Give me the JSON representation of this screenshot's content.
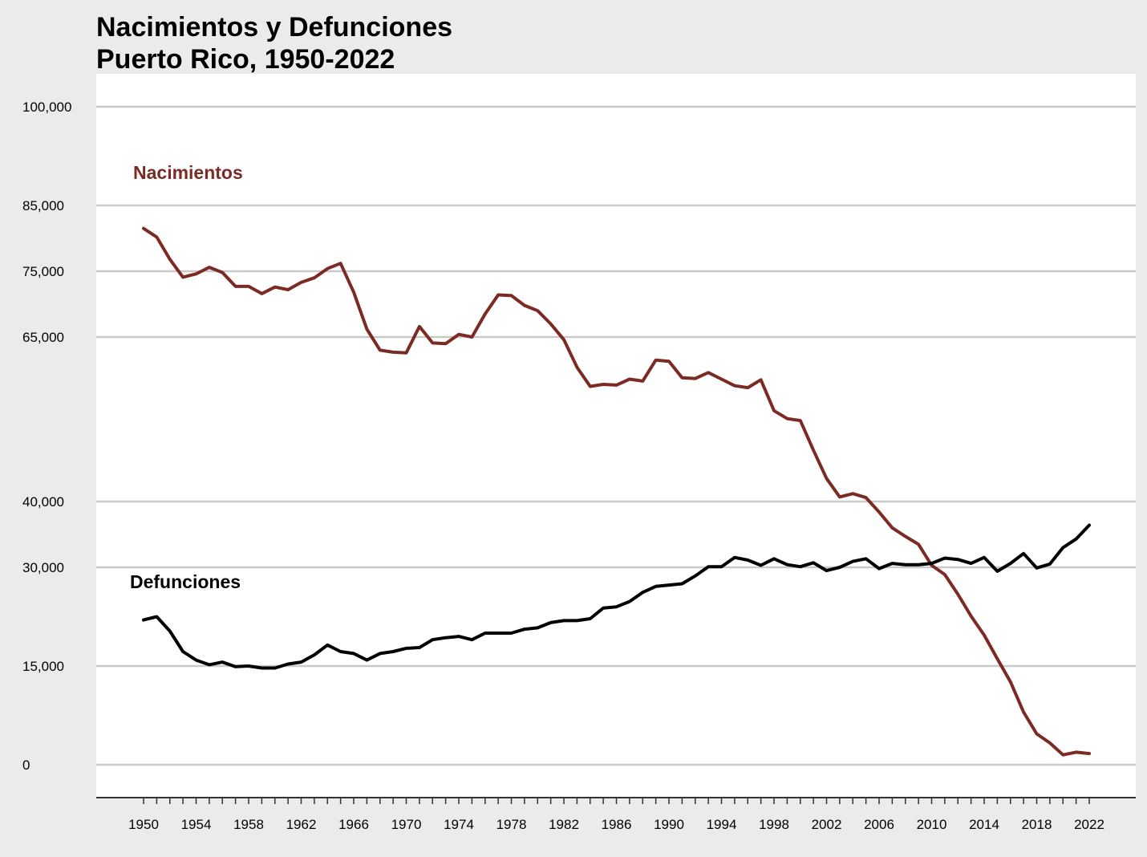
{
  "chart_data": {
    "type": "line",
    "title_line1": "Nacimientos y Defunciones",
    "title_line2": "Puerto Rico, 1950-2022",
    "xlabel": "",
    "ylabel": "",
    "x": [
      1950,
      1951,
      1952,
      1953,
      1954,
      1955,
      1956,
      1957,
      1958,
      1959,
      1960,
      1961,
      1962,
      1963,
      1964,
      1965,
      1966,
      1967,
      1968,
      1969,
      1970,
      1971,
      1972,
      1973,
      1974,
      1975,
      1976,
      1977,
      1978,
      1979,
      1980,
      1981,
      1982,
      1983,
      1984,
      1985,
      1986,
      1987,
      1988,
      1989,
      1990,
      1991,
      1992,
      1993,
      1994,
      1995,
      1996,
      1997,
      1998,
      1999,
      2000,
      2001,
      2002,
      2003,
      2004,
      2005,
      2006,
      2007,
      2008,
      2009,
      2010,
      2011,
      2012,
      2013,
      2014,
      2015,
      2016,
      2017,
      2018,
      2019,
      2020,
      2021,
      2022
    ],
    "x_tick_labels": [
      "1950",
      "1954",
      "1958",
      "1962",
      "1966",
      "1970",
      "1974",
      "1978",
      "1982",
      "1986",
      "1990",
      "1994",
      "1998",
      "2002",
      "2006",
      "2010",
      "2014",
      "2018",
      "2022"
    ],
    "y_tick_labels": [
      {
        "value": 0,
        "label": "0"
      },
      {
        "value": 15000,
        "label": "15,000"
      },
      {
        "value": 30000,
        "label": "30,000"
      },
      {
        "value": 40000,
        "label": "40,000"
      },
      {
        "value": 65000,
        "label": "65,000"
      },
      {
        "value": 75000,
        "label": "75,000"
      },
      {
        "value": 85000,
        "label": "85,000"
      },
      {
        "value": 100000,
        "label": "100,000"
      }
    ],
    "ylim": [
      -5000,
      105000
    ],
    "grid": true,
    "series": [
      {
        "name": "Nacimientos",
        "color": "#7b2a24",
        "values": [
          81500,
          80200,
          76800,
          74100,
          74600,
          75600,
          74800,
          72700,
          72700,
          71600,
          72600,
          72200,
          73300,
          74000,
          75400,
          76200,
          71800,
          66200,
          63000,
          62700,
          62600,
          66600,
          64100,
          64000,
          65400,
          65000,
          68500,
          71400,
          71300,
          69800,
          69000,
          67000,
          64600,
          60400,
          57500,
          57800,
          57700,
          58600,
          58300,
          61500,
          61300,
          58800,
          58700,
          59600,
          58600,
          57600,
          57300,
          58500,
          53800,
          52600,
          52300,
          47800,
          43500,
          40700,
          41200,
          40600,
          38400,
          36000,
          34700,
          33500,
          30300,
          28900,
          25900,
          22600,
          19700,
          16100,
          12600,
          8000,
          4700,
          3300,
          1500,
          1900,
          1700
        ]
      },
      {
        "name": "Defunciones",
        "color": "#000000",
        "values": [
          22000,
          22500,
          20300,
          17200,
          15900,
          15200,
          15600,
          14900,
          15000,
          14700,
          14700,
          15300,
          15600,
          16700,
          18200,
          17200,
          16900,
          15900,
          16900,
          17200,
          17700,
          17800,
          19000,
          19300,
          19500,
          19000,
          20000,
          20000,
          20000,
          20600,
          20800,
          21600,
          21900,
          21900,
          22200,
          23800,
          24000,
          24800,
          26200,
          27100,
          27300,
          27500,
          28700,
          30100,
          30100,
          31500,
          31100,
          30300,
          31300,
          30400,
          30100,
          30700,
          29500,
          30000,
          30900,
          31300,
          29800,
          30600,
          30400,
          30400,
          30600,
          31400,
          31200,
          30600,
          31500,
          29400,
          30600,
          32100,
          29900,
          30500,
          33000,
          34300,
          36400
        ]
      }
    ]
  }
}
